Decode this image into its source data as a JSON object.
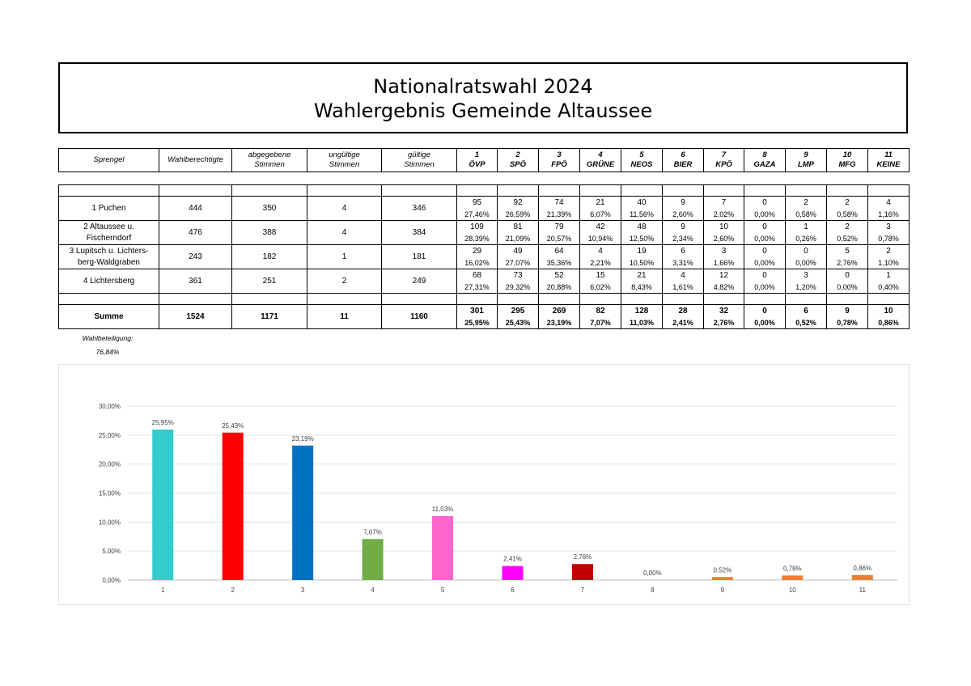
{
  "title": {
    "line1": "Nationalratswahl 2024",
    "line2": "Wahlergebnis Gemeinde Altaussee"
  },
  "columns": {
    "sprengel": "Sprengel",
    "wahlberechtigte": "Wahlberechtigte",
    "abgegeben": [
      "abgegebene",
      "Stimmen"
    ],
    "ungueltig": [
      "ungültige",
      "Stimmen"
    ],
    "gueltig": [
      "gültige",
      "Stimmen"
    ]
  },
  "parties": [
    {
      "num": "1",
      "name": "ÖVP"
    },
    {
      "num": "2",
      "name": "SPÖ"
    },
    {
      "num": "3",
      "name": "FPÖ"
    },
    {
      "num": "4",
      "name": "GRÜNE"
    },
    {
      "num": "5",
      "name": "NEOS"
    },
    {
      "num": "6",
      "name": "BIER"
    },
    {
      "num": "7",
      "name": "KPÖ"
    },
    {
      "num": "8",
      "name": "GAZA"
    },
    {
      "num": "9",
      "name": "LMP"
    },
    {
      "num": "10",
      "name": "MFG"
    },
    {
      "num": "11",
      "name": "KEINE"
    }
  ],
  "rows": [
    {
      "name": [
        "1 Puchen"
      ],
      "wb": "444",
      "abg": "350",
      "ung": "4",
      "gue": "346",
      "votes": [
        "95",
        "92",
        "74",
        "21",
        "40",
        "9",
        "7",
        "0",
        "2",
        "2",
        "4"
      ],
      "pct": [
        "27,46%",
        "26,59%",
        "21,39%",
        "6,07%",
        "11,56%",
        "2,60%",
        "2,02%",
        "0,00%",
        "0,58%",
        "0,58%",
        "1,16%"
      ]
    },
    {
      "name": [
        "2 Altaussee u.",
        "Fischerndorf"
      ],
      "wb": "476",
      "abg": "388",
      "ung": "4",
      "gue": "384",
      "votes": [
        "109",
        "81",
        "79",
        "42",
        "48",
        "9",
        "10",
        "0",
        "1",
        "2",
        "3"
      ],
      "pct": [
        "28,39%",
        "21,09%",
        "20,57%",
        "10,94%",
        "12,50%",
        "2,34%",
        "2,60%",
        "0,00%",
        "0,26%",
        "0,52%",
        "0,78%"
      ]
    },
    {
      "name": [
        "3 Lupitsch u. Lichters-",
        "berg-Waldgraben"
      ],
      "wb": "243",
      "abg": "182",
      "ung": "1",
      "gue": "181",
      "votes": [
        "29",
        "49",
        "64",
        "4",
        "19",
        "6",
        "3",
        "0",
        "0",
        "5",
        "2"
      ],
      "pct": [
        "16,02%",
        "27,07%",
        "35,36%",
        "2,21%",
        "10,50%",
        "3,31%",
        "1,66%",
        "0,00%",
        "0,00%",
        "2,76%",
        "1,10%"
      ]
    },
    {
      "name": [
        "4 Lichtersberg"
      ],
      "wb": "361",
      "abg": "251",
      "ung": "2",
      "gue": "249",
      "votes": [
        "68",
        "73",
        "52",
        "15",
        "21",
        "4",
        "12",
        "0",
        "3",
        "0",
        "1"
      ],
      "pct": [
        "27,31%",
        "29,32%",
        "20,88%",
        "6,02%",
        "8,43%",
        "1,61%",
        "4,82%",
        "0,00%",
        "1,20%",
        "0,00%",
        "0,40%"
      ]
    }
  ],
  "summe": {
    "name": "Summe",
    "wb": "1524",
    "abg": "1171",
    "ung": "11",
    "gue": "1160",
    "votes": [
      "301",
      "295",
      "269",
      "82",
      "128",
      "28",
      "32",
      "0",
      "6",
      "9",
      "10"
    ],
    "pct": [
      "25,95%",
      "25,43%",
      "23,19%",
      "7,07%",
      "11,03%",
      "2,41%",
      "2,76%",
      "0,00%",
      "0,52%",
      "0,78%",
      "0,86%"
    ]
  },
  "turnout": {
    "label": "Wahlbeteiligung:",
    "value": "76,84%"
  },
  "chart_data": {
    "type": "bar",
    "categories": [
      "1",
      "2",
      "3",
      "4",
      "5",
      "6",
      "7",
      "8",
      "9",
      "10",
      "11"
    ],
    "values": [
      25.95,
      25.43,
      23.19,
      7.07,
      11.03,
      2.41,
      2.76,
      0.0,
      0.52,
      0.78,
      0.86
    ],
    "value_labels": [
      "25,95%",
      "25,43%",
      "23,19%",
      "7,07%",
      "11,03%",
      "2,41%",
      "2,76%",
      "0,00%",
      "0,52%",
      "0,78%",
      "0,86%"
    ],
    "colors": [
      "#33CCCC",
      "#FF0000",
      "#0070C0",
      "#70AD47",
      "#FF66CC",
      "#FF00FF",
      "#C00000",
      "#7F7F7F",
      "#ED7D31",
      "#ED7D31",
      "#ED7D31"
    ],
    "yticks": [
      "0,00%",
      "5,00%",
      "10,00%",
      "15,00%",
      "20,00%",
      "25,00%",
      "30,00%"
    ],
    "ylim": [
      0,
      30
    ],
    "grid": true,
    "title": "",
    "xlabel": "",
    "ylabel": ""
  }
}
